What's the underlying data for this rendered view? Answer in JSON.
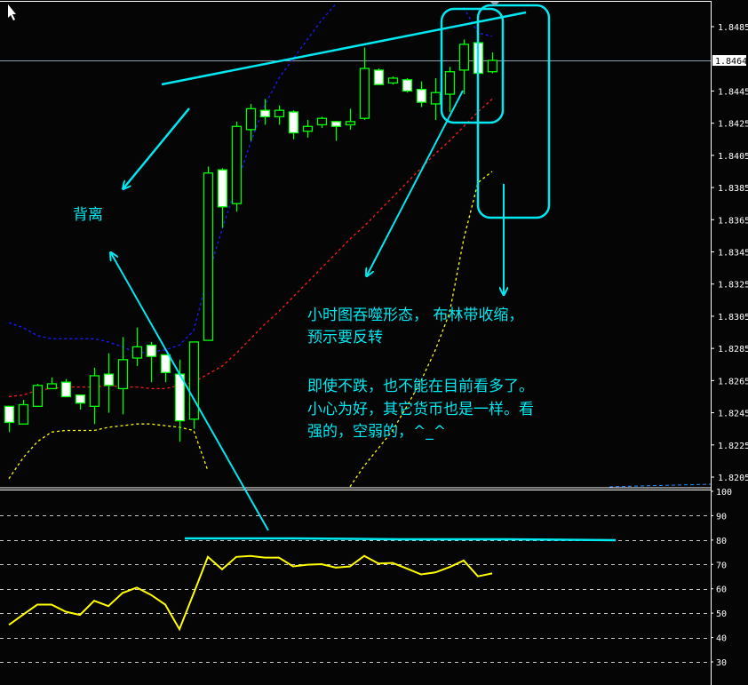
{
  "colors": {
    "background": "#050506",
    "candle_outline": "#00ff00",
    "bear_body": "#ffffff",
    "bull_body": "#050506",
    "upper_band": "#1a1aff",
    "middle_band": "#ff1a1a",
    "lower_band": "#ffff00",
    "rsi_line": "#ffff00",
    "annotation": "#00e8f0",
    "grid": "#c8c8c8",
    "current_price_line": "#8aa0b0"
  },
  "icons": {
    "cursor": "mouse-pointer-icon"
  },
  "annotations": {
    "divergence_label": "背离",
    "note_line1": "小时图吞噬形态， 布林带收缩，",
    "note_line2": "预示要反转",
    "note_line3": "即使不跌，也不能在目前看多了。",
    "note_line4": "小心为好，其它货币也是一样。看",
    "note_line5": "强的，空弱的，^_^"
  },
  "chart_data": [
    {
      "type": "candlestick",
      "price_axis": {
        "ylim": [
          1.8205,
          1.8485
        ],
        "ticks": [
          "1.8485",
          "1.8445",
          "1.8425",
          "1.8405",
          "1.8385",
          "1.8365",
          "1.8345",
          "1.8325",
          "1.8305",
          "1.8285",
          "1.8265",
          "1.8245",
          "1.8225",
          "1.8205"
        ],
        "current_price": "1.8464"
      },
      "candles": [
        {
          "o": 1.8249,
          "h": 1.8249,
          "l": 1.8233,
          "c": 1.8239
        },
        {
          "o": 1.8238,
          "h": 1.8253,
          "l": 1.8238,
          "c": 1.825
        },
        {
          "o": 1.8249,
          "h": 1.8263,
          "l": 1.8249,
          "c": 1.8262
        },
        {
          "o": 1.826,
          "h": 1.8267,
          "l": 1.826,
          "c": 1.8263
        },
        {
          "o": 1.8264,
          "h": 1.8266,
          "l": 1.8255,
          "c": 1.8255
        },
        {
          "o": 1.8256,
          "h": 1.8256,
          "l": 1.8247,
          "c": 1.8251
        },
        {
          "o": 1.8249,
          "h": 1.8273,
          "l": 1.8238,
          "c": 1.8268
        },
        {
          "o": 1.8269,
          "h": 1.8282,
          "l": 1.8245,
          "c": 1.8262
        },
        {
          "o": 1.826,
          "h": 1.8292,
          "l": 1.8244,
          "c": 1.8278
        },
        {
          "o": 1.8279,
          "h": 1.8298,
          "l": 1.8274,
          "c": 1.8286
        },
        {
          "o": 1.8287,
          "h": 1.8289,
          "l": 1.8264,
          "c": 1.828
        },
        {
          "o": 1.8281,
          "h": 1.8281,
          "l": 1.8264,
          "c": 1.827
        },
        {
          "o": 1.8269,
          "h": 1.8278,
          "l": 1.8227,
          "c": 1.824
        },
        {
          "o": 1.8241,
          "h": 1.8289,
          "l": 1.8235,
          "c": 1.8289
        },
        {
          "o": 1.829,
          "h": 1.8398,
          "l": 1.829,
          "c": 1.8394
        },
        {
          "o": 1.8396,
          "h": 1.8397,
          "l": 1.836,
          "c": 1.8373
        },
        {
          "o": 1.8375,
          "h": 1.8426,
          "l": 1.837,
          "c": 1.8423
        },
        {
          "o": 1.8421,
          "h": 1.8437,
          "l": 1.8414,
          "c": 1.8434
        },
        {
          "o": 1.8433,
          "h": 1.844,
          "l": 1.8424,
          "c": 1.8429
        },
        {
          "o": 1.8429,
          "h": 1.8436,
          "l": 1.8424,
          "c": 1.8433
        },
        {
          "o": 1.8432,
          "h": 1.8433,
          "l": 1.8415,
          "c": 1.8419
        },
        {
          "o": 1.842,
          "h": 1.8427,
          "l": 1.8416,
          "c": 1.8423
        },
        {
          "o": 1.8424,
          "h": 1.8429,
          "l": 1.8422,
          "c": 1.8428
        },
        {
          "o": 1.8426,
          "h": 1.8426,
          "l": 1.8414,
          "c": 1.8423
        },
        {
          "o": 1.8424,
          "h": 1.8434,
          "l": 1.8421,
          "c": 1.8426
        },
        {
          "o": 1.8428,
          "h": 1.8472,
          "l": 1.8427,
          "c": 1.8459
        },
        {
          "o": 1.8458,
          "h": 1.8459,
          "l": 1.8449,
          "c": 1.8449
        },
        {
          "o": 1.845,
          "h": 1.8454,
          "l": 1.8449,
          "c": 1.8453
        },
        {
          "o": 1.8452,
          "h": 1.8453,
          "l": 1.8444,
          "c": 1.8445
        },
        {
          "o": 1.8446,
          "h": 1.8451,
          "l": 1.8435,
          "c": 1.8438
        },
        {
          "o": 1.8437,
          "h": 1.8453,
          "l": 1.8427,
          "c": 1.8444
        },
        {
          "o": 1.8443,
          "h": 1.846,
          "l": 1.8432,
          "c": 1.8457
        },
        {
          "o": 1.8458,
          "h": 1.8477,
          "l": 1.8443,
          "c": 1.8474
        },
        {
          "o": 1.8475,
          "h": 1.8475,
          "l": 1.8456,
          "c": 1.8456
        },
        {
          "o": 1.8457,
          "h": 1.8469,
          "l": 1.8456,
          "c": 1.8464
        }
      ],
      "bollinger": {
        "upper": [
          1.8301,
          1.8298,
          1.8293,
          1.8291,
          1.8291,
          1.8291,
          1.8291,
          1.8289,
          1.8286,
          1.8282,
          1.8283,
          1.8284,
          1.8287,
          1.8296,
          1.833,
          1.8359,
          1.8386,
          1.8413,
          1.8436,
          1.8453,
          1.8465,
          1.8477,
          1.8489,
          1.8499,
          null,
          null,
          null,
          null,
          null,
          null,
          null,
          null,
          1.8497,
          1.8481,
          1.8479
        ],
        "middle": [
          1.8255,
          1.8256,
          1.8259,
          1.826,
          1.8261,
          1.8261,
          1.8261,
          1.8262,
          1.8261,
          1.8261,
          1.826,
          1.826,
          1.8262,
          1.8264,
          1.8269,
          1.8274,
          1.8282,
          1.8291,
          1.83,
          1.8308,
          1.8317,
          1.8326,
          1.8335,
          1.8344,
          1.8353,
          1.8361,
          1.837,
          1.8379,
          1.8388,
          1.8397,
          1.8406,
          1.8414,
          1.8423,
          1.8432,
          1.844
        ],
        "lower": [
          1.8204,
          1.8217,
          1.8227,
          1.8233,
          1.8234,
          1.8234,
          1.8234,
          1.8236,
          1.8237,
          1.8238,
          1.8238,
          1.8237,
          1.8236,
          1.8234,
          1.8209,
          null,
          null,
          null,
          null,
          null,
          null,
          null,
          null,
          null,
          1.8199,
          1.8212,
          1.8223,
          1.8234,
          1.8249,
          1.8265,
          1.8284,
          1.8307,
          1.8353,
          1.8388,
          1.8395
        ]
      }
    },
    {
      "type": "line",
      "indicator_axis": {
        "ylim": [
          30,
          100
        ],
        "ticks": [
          "100",
          "90",
          "80",
          "70",
          "60",
          "50",
          "40",
          "30"
        ],
        "grid_levels": [
          90,
          80,
          70,
          60,
          50,
          40,
          30
        ]
      },
      "values": [
        45.2,
        49.4,
        53.5,
        53.5,
        50.6,
        49.3,
        55.1,
        52.9,
        58.3,
        60.5,
        57.5,
        53.5,
        43.4,
        58.1,
        73.1,
        68.0,
        73.1,
        73.5,
        72.8,
        72.8,
        69.2,
        69.9,
        70.1,
        68.7,
        69.2,
        73.5,
        70.4,
        70.6,
        68.3,
        65.9,
        66.7,
        68.9,
        71.6,
        65.1,
        66.3
      ]
    }
  ]
}
